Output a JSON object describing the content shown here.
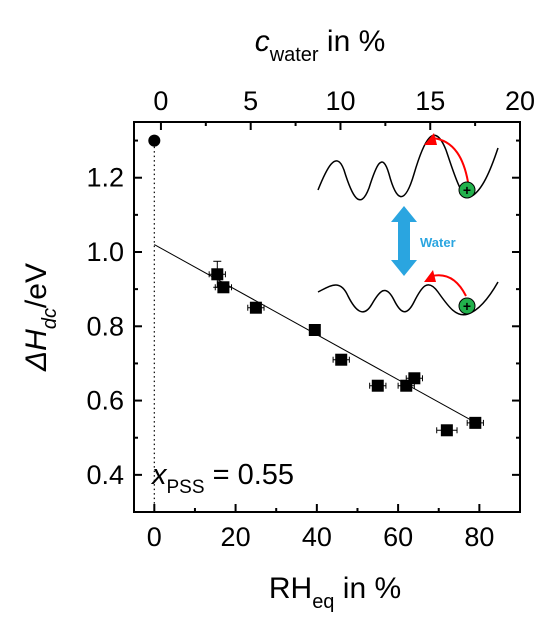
{
  "chart_data": {
    "type": "scatter",
    "bottom_axis": {
      "label_main": "RH",
      "label_sub": "eq",
      "label_suffix": " in %",
      "range": [
        -5,
        90
      ],
      "ticks": [
        0,
        20,
        40,
        60,
        80
      ]
    },
    "top_axis": {
      "label_main": "c",
      "label_sub": "water",
      "label_suffix": " in %",
      "range": [
        -1.5,
        20
      ],
      "ticks": [
        0,
        5,
        10,
        15,
        20
      ]
    },
    "left_axis": {
      "label_prefix": "ΔH",
      "label_sub": "dc",
      "label_suffix": "/eV",
      "range": [
        0.3,
        1.35
      ],
      "ticks": [
        "0.4",
        "0.6",
        "0.8",
        "1.0",
        "1.2"
      ]
    },
    "series": [
      {
        "marker": "circle",
        "points": [
          {
            "x": 0,
            "y": 1.3
          }
        ]
      },
      {
        "marker": "square",
        "points": [
          {
            "x": 15.5,
            "y": 0.94,
            "xerr": 2,
            "yerr": 0.035
          },
          {
            "x": 17,
            "y": 0.905,
            "xerr": 2,
            "yerr": 0.01
          },
          {
            "x": 25,
            "y": 0.85,
            "xerr": 2,
            "yerr": 0.01
          },
          {
            "x": 39.5,
            "y": 0.79,
            "xerr": 1.2,
            "yerr": 0.01
          },
          {
            "x": 46,
            "y": 0.71,
            "xerr": 2,
            "yerr": 0.01
          },
          {
            "x": 55,
            "y": 0.64,
            "xerr": 2,
            "yerr": 0.01
          },
          {
            "x": 62,
            "y": 0.64,
            "xerr": 2,
            "yerr": 0.01
          },
          {
            "x": 64,
            "y": 0.66,
            "xerr": 2,
            "yerr": 0.01
          },
          {
            "x": 72,
            "y": 0.52,
            "xerr": 2.5,
            "yerr": 0.01
          },
          {
            "x": 79,
            "y": 0.54,
            "xerr": 2,
            "yerr": 0.01
          }
        ]
      }
    ],
    "fit_line": {
      "x": [
        0,
        80
      ],
      "y": [
        1.02,
        0.535
      ]
    },
    "reference_line": {
      "x": 0,
      "style": "dotted"
    },
    "annotations": {
      "composition": {
        "main": "x",
        "sub": "PSS",
        "value": " = 0.55"
      },
      "arrow_label": "Water"
    },
    "colors": {
      "axis": "#000000",
      "marker": "#000000",
      "ion": "#22b14c",
      "hop_arrow": "#ff0000",
      "water_arrow": "#2aa5e0",
      "water_text": "#2aa5e0"
    },
    "grid": false
  }
}
